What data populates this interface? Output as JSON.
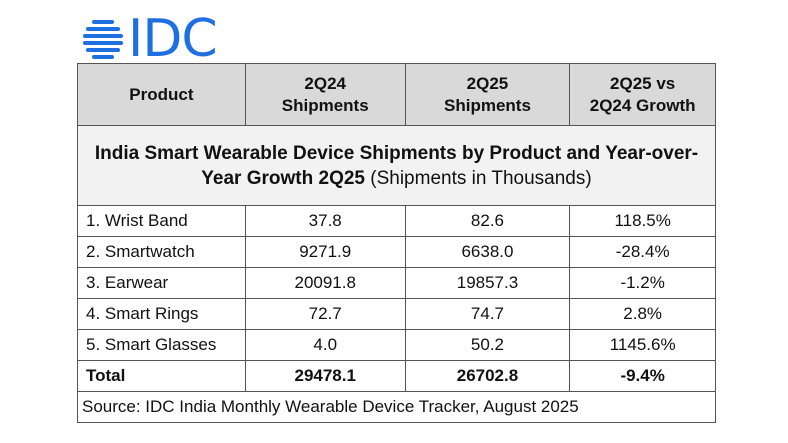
{
  "logo": {
    "text": "IDC",
    "color": "#1e6fe0"
  },
  "title": {
    "bold": "India Smart Wearable Device Shipments by Product and Year-over-Year Growth 2Q25",
    "normal": " (Shipments in Thousands)"
  },
  "chart_data": {
    "type": "table",
    "columns": [
      "Product",
      "2Q24 Shipments",
      "2Q25 Shipments",
      "2Q25 vs 2Q24 Growth"
    ],
    "rows": [
      [
        "1. Wrist Band",
        "37.8",
        "82.6",
        "118.5%"
      ],
      [
        "2. Smartwatch",
        "9271.9",
        "6638.0",
        "-28.4%"
      ],
      [
        "3. Earwear",
        "20091.8",
        "19857.3",
        "-1.2%"
      ],
      [
        "4. Smart Rings",
        "72.7",
        "74.7",
        "2.8%"
      ],
      [
        "5. Smart Glasses",
        "4.0",
        "50.2",
        "1145.6%"
      ]
    ],
    "total": [
      "Total",
      "29478.1",
      "26702.8",
      "-9.4%"
    ]
  },
  "source": "Source: IDC India Monthly Wearable Device Tracker, August 2025"
}
